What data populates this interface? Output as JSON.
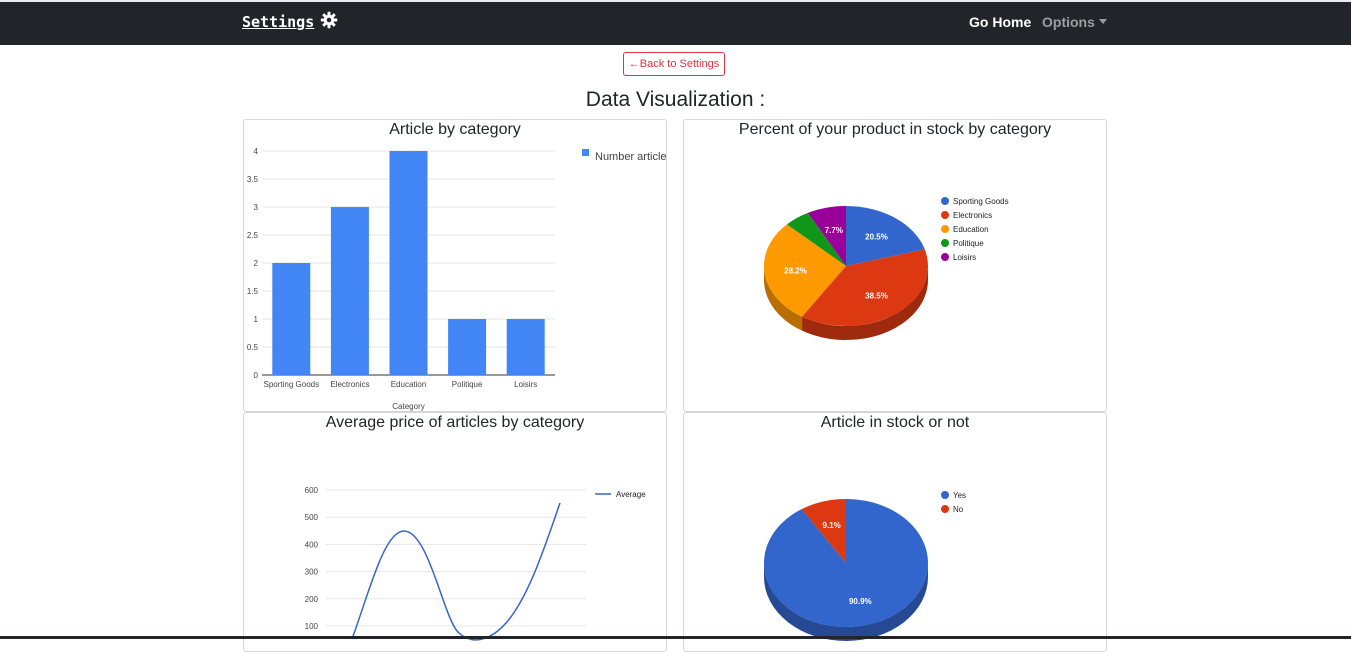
{
  "navbar": {
    "brand": "Settings",
    "brand_icon": "gear-icon",
    "home_label": "Go Home",
    "options_label": "Options"
  },
  "back_button": "←Back to Settings",
  "page_title": "Data Visualization :",
  "charts": {
    "bar_title": "Article by category",
    "pie_title": "Percent of your product in stock by category",
    "line_title": "Average price of articles by category",
    "stock_title": "Article in stock or not"
  },
  "chart_data": [
    {
      "type": "bar",
      "title": "Article by category",
      "categories": [
        "Sporting Goods",
        "Electronics",
        "Education",
        "Politique",
        "Loisirs"
      ],
      "series": [
        {
          "name": "Number article",
          "values": [
            2,
            3,
            4,
            1,
            1
          ],
          "color": "#4285f4"
        }
      ],
      "xlabel": "Category",
      "ylabel": "",
      "ylim": [
        0,
        4
      ],
      "yticks": [
        "0",
        "0.5",
        "1",
        "1.5",
        "2",
        "2.5",
        "3",
        "3.5",
        "4"
      ],
      "grid": true,
      "legend": "right"
    },
    {
      "type": "pie",
      "title": "Percent of your product in stock by category",
      "labels": [
        "Sporting Goods",
        "Electronics",
        "Education",
        "Politique",
        "Loisirs"
      ],
      "values": [
        20.5,
        38.5,
        28.2,
        5.1,
        7.7
      ],
      "value_labels": [
        "20.5%",
        "38.5%",
        "28.2%",
        "",
        "7.7%"
      ],
      "colors": [
        "#3366cc",
        "#dc3912",
        "#ff9900",
        "#109618",
        "#990099"
      ],
      "legend": "right",
      "style": "3d"
    },
    {
      "type": "line",
      "title": "Average price of articles by category",
      "series": [
        {
          "name": "Average",
          "color": "#3366cc"
        }
      ],
      "yticks": [
        "100",
        "200",
        "300",
        "400",
        "500",
        "600"
      ],
      "ylim": [
        100,
        600
      ],
      "grid": true,
      "legend": "right",
      "curve": "smooth"
    },
    {
      "type": "pie",
      "title": "Article in stock or not",
      "labels": [
        "Yes",
        "No"
      ],
      "values": [
        90.9,
        9.1
      ],
      "value_labels": [
        "90.9%",
        "9.1%"
      ],
      "colors": [
        "#3366cc",
        "#dc3912"
      ],
      "legend": "right",
      "style": "3d"
    }
  ]
}
